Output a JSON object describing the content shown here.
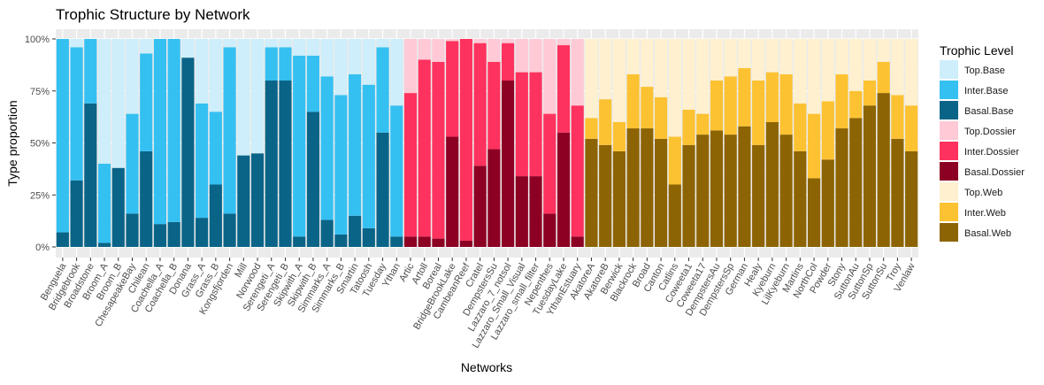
{
  "chart_data": {
    "type": "bar",
    "stacked": true,
    "title": "Trophic Structure by Network",
    "xlabel": "Networks",
    "ylabel": "Type proportion",
    "ylim": [
      0,
      1
    ],
    "y_ticks": [
      "0%",
      "25%",
      "50%",
      "75%",
      "100%"
    ],
    "grid": true,
    "legend_title": "Trophic Level",
    "legend_position": "right",
    "legend_order": [
      "Top.Base",
      "Inter.Base",
      "Basal.Base",
      "Top.Dossier",
      "Inter.Dossier",
      "Basal.Dossier",
      "Top.Web",
      "Inter.Web",
      "Basal.Web"
    ],
    "colors": {
      "Top.Base": "#cdeefa",
      "Inter.Base": "#35c0f2",
      "Basal.Base": "#0a6487",
      "Top.Dossier": "#ffc9d6",
      "Inter.Dossier": "#fe325e",
      "Basal.Dossier": "#8c0024",
      "Top.Web": "#fff1cf",
      "Inter.Web": "#fdc232",
      "Basal.Web": "#8d6403"
    },
    "groups": [
      {
        "top": [
          0.0,
          0.04,
          0.0,
          0.6,
          0.62,
          0.36,
          0.07,
          0.0,
          0.0,
          0.09,
          0.31,
          0.35,
          0.04,
          0.56,
          0.55,
          0.04,
          0.04,
          0.08,
          0.08,
          0.18,
          0.27,
          0.17,
          0.22,
          0.04,
          0.32
        ],
        "inter": [
          0.93,
          0.64,
          0.31,
          0.38,
          0.0,
          0.48,
          0.47,
          0.89,
          0.88,
          0.0,
          0.55,
          0.35,
          0.8,
          0.0,
          0.0,
          0.16,
          0.16,
          0.87,
          0.27,
          0.69,
          0.67,
          0.68,
          0.69,
          0.41,
          0.63
        ],
        "basal": [
          0.07,
          0.32,
          0.69,
          0.02,
          0.38,
          0.16,
          0.46,
          0.11,
          0.12,
          0.91,
          0.14,
          0.3,
          0.16,
          0.44,
          0.45,
          0.8,
          0.8,
          0.05,
          0.65,
          0.13,
          0.06,
          0.15,
          0.09,
          0.55,
          0.05
        ],
        "categories": [
          "Benguela",
          "Bridgebrook",
          "Broadstone",
          "Broom_A",
          "Broom_B",
          "ChesapeakeBay",
          "Chilean",
          "Coachella_A",
          "Coachella_B",
          "Donana",
          "Grass_A",
          "Grass_B",
          "Kongsfjorden",
          "Mill",
          "Norwood",
          "Serengeti_A",
          "Serengeti_B",
          "Skipwith_A",
          "Skipwith_B",
          "Simmarks_A",
          "Simmarks_B",
          "Smartin",
          "Tatoosh",
          "Tuesday",
          "Ythan"
        ]
      },
      {
        "top": [
          0.26,
          0.1,
          0.11,
          0.01,
          0.0,
          0.02,
          0.11,
          0.02,
          0.16,
          0.16,
          0.36,
          0.03,
          0.32
        ],
        "inter": [
          0.69,
          0.85,
          0.85,
          0.46,
          0.97,
          0.59,
          0.42,
          0.18,
          0.5,
          0.5,
          0.48,
          0.42,
          0.63
        ],
        "basal": [
          0.05,
          0.05,
          0.04,
          0.53,
          0.03,
          0.39,
          0.47,
          0.8,
          0.34,
          0.34,
          0.16,
          0.55,
          0.05
        ],
        "categories": [
          "Artic",
          "Artoll",
          "Boreal",
          "BridgeBrookLake",
          "CambeanReef",
          "Cratel",
          "DempstersSu",
          "Lazzaro_7_notsol",
          "Lazzaro_Small_Visual",
          "Lazzaro_small_filter",
          "Nepenthes",
          "TuesdayLake",
          "YthanEstuary"
        ]
      },
      {
        "top": [
          0.38,
          0.29,
          0.4,
          0.17,
          0.23,
          0.28,
          0.47,
          0.34,
          0.36,
          0.2,
          0.18,
          0.14,
          0.2,
          0.16,
          0.17,
          0.31,
          0.36,
          0.3,
          0.17,
          0.25,
          0.2,
          0.11,
          0.27,
          0.32
        ],
        "inter": [
          0.1,
          0.22,
          0.14,
          0.26,
          0.2,
          0.2,
          0.23,
          0.17,
          0.1,
          0.24,
          0.28,
          0.28,
          0.31,
          0.24,
          0.29,
          0.23,
          0.31,
          0.28,
          0.26,
          0.13,
          0.12,
          0.15,
          0.21,
          0.22
        ],
        "basal": [
          0.52,
          0.49,
          0.46,
          0.57,
          0.57,
          0.52,
          0.3,
          0.49,
          0.54,
          0.56,
          0.54,
          0.58,
          0.49,
          0.6,
          0.54,
          0.46,
          0.33,
          0.42,
          0.57,
          0.62,
          0.68,
          0.74,
          0.52,
          0.46
        ],
        "categories": [
          "AkatoreA",
          "AkatoreB",
          "Berwick",
          "Blackrock",
          "Broad",
          "Canton",
          "Catlins",
          "Coweeta1",
          "Coweeta17",
          "DempstersAu",
          "DempstersSp",
          "German",
          "Healy",
          "Kyeburn",
          "LilKyeburn",
          "Martins",
          "NorthCol",
          "Powder",
          "Stony",
          "SuttonAu",
          "SuttonSp",
          "SuttonSu",
          "Troy",
          "Venlaw"
        ]
      }
    ]
  }
}
